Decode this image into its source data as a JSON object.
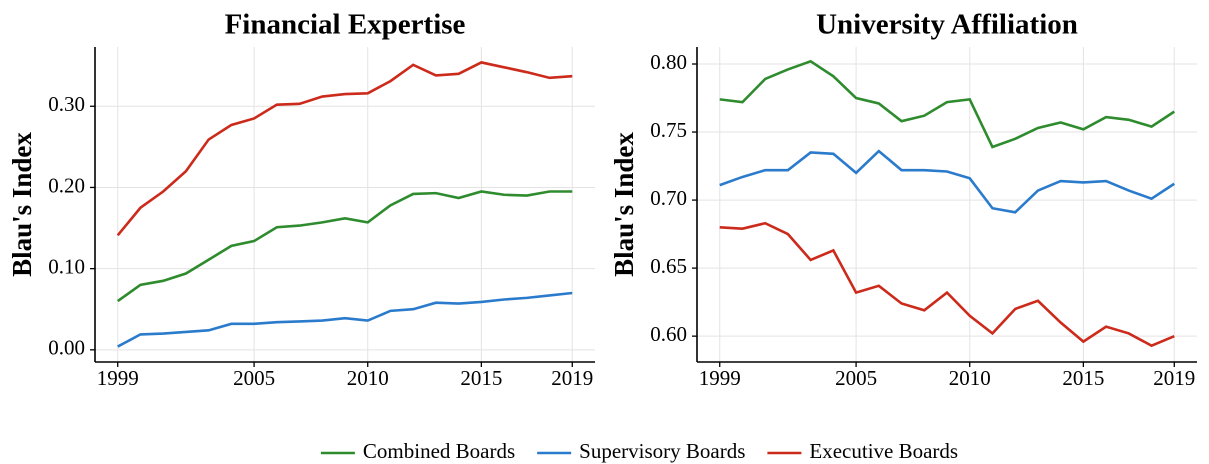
{
  "chart_data": [
    {
      "type": "line",
      "title": "Financial Expertise",
      "ylabel": "Blau's Index",
      "x": [
        1999,
        2000,
        2001,
        2002,
        2003,
        2004,
        2005,
        2006,
        2007,
        2008,
        2009,
        2010,
        2011,
        2012,
        2013,
        2014,
        2015,
        2016,
        2017,
        2018,
        2019
      ],
      "xlim": [
        1998,
        2020
      ],
      "xticks": [
        1999,
        2005,
        2010,
        2015,
        2019
      ],
      "ylim": [
        -0.015,
        0.373
      ],
      "yticks": [
        {
          "value": 0,
          "label": "0.00"
        },
        {
          "value": 0.1,
          "label": "0.10"
        },
        {
          "value": 0.2,
          "label": "0.20"
        },
        {
          "value": 0.3,
          "label": "0.30"
        }
      ],
      "grid": true,
      "legend": "bottom",
      "series": [
        {
          "name": "Combined Boards",
          "color": "#2e8b2e",
          "values": [
            0.06,
            0.08,
            0.085,
            0.094,
            0.111,
            0.128,
            0.134,
            0.151,
            0.153,
            0.157,
            0.162,
            0.157,
            0.178,
            0.192,
            0.193,
            0.187,
            0.195,
            0.191,
            0.19,
            0.195,
            0.195
          ]
        },
        {
          "name": "Supervisory Boards",
          "color": "#2b7bcc",
          "values": [
            0.004,
            0.019,
            0.02,
            0.022,
            0.024,
            0.032,
            0.032,
            0.034,
            0.035,
            0.036,
            0.039,
            0.036,
            0.048,
            0.05,
            0.058,
            0.057,
            0.059,
            0.062,
            0.064,
            0.067,
            0.07
          ]
        },
        {
          "name": "Executive Boards",
          "color": "#cc2a1a",
          "values": [
            0.141,
            0.175,
            0.195,
            0.22,
            0.259,
            0.277,
            0.285,
            0.302,
            0.303,
            0.312,
            0.315,
            0.316,
            0.331,
            0.351,
            0.338,
            0.34,
            0.354,
            0.348,
            0.342,
            0.335,
            0.337
          ]
        }
      ]
    },
    {
      "type": "line",
      "title": "University Affiliation",
      "ylabel": "Blau's Index",
      "x": [
        1999,
        2000,
        2001,
        2002,
        2003,
        2004,
        2005,
        2006,
        2007,
        2008,
        2009,
        2010,
        2011,
        2012,
        2013,
        2014,
        2015,
        2016,
        2017,
        2018,
        2019
      ],
      "xlim": [
        1998,
        2020
      ],
      "xticks": [
        1999,
        2005,
        2010,
        2015,
        2019
      ],
      "ylim": [
        0.581,
        0.8125
      ],
      "yticks": [
        {
          "value": 0.6,
          "label": "0.60"
        },
        {
          "value": 0.65,
          "label": "0.65"
        },
        {
          "value": 0.7,
          "label": "0.70"
        },
        {
          "value": 0.75,
          "label": "0.75"
        },
        {
          "value": 0.8,
          "label": "0.80"
        }
      ],
      "grid": true,
      "series": [
        {
          "color": "#2e8b2e",
          "values": [
            0.774,
            0.772,
            0.789,
            0.796,
            0.802,
            0.791,
            0.775,
            0.771,
            0.758,
            0.762,
            0.772,
            0.774,
            0.739,
            0.745,
            0.753,
            0.757,
            0.752,
            0.761,
            0.759,
            0.754,
            0.765
          ]
        },
        {
          "color": "#2b7bcc",
          "values": [
            0.711,
            0.717,
            0.722,
            0.722,
            0.735,
            0.734,
            0.72,
            0.736,
            0.722,
            0.722,
            0.721,
            0.716,
            0.694,
            0.691,
            0.707,
            0.714,
            0.713,
            0.714,
            0.707,
            0.701,
            0.712
          ]
        },
        {
          "color": "#cc2a1a",
          "values": [
            0.68,
            0.679,
            0.683,
            0.675,
            0.656,
            0.663,
            0.632,
            0.637,
            0.624,
            0.619,
            0.632,
            0.615,
            0.602,
            0.62,
            0.626,
            0.61,
            0.596,
            0.607,
            0.602,
            0.593,
            0.6
          ]
        }
      ]
    }
  ]
}
